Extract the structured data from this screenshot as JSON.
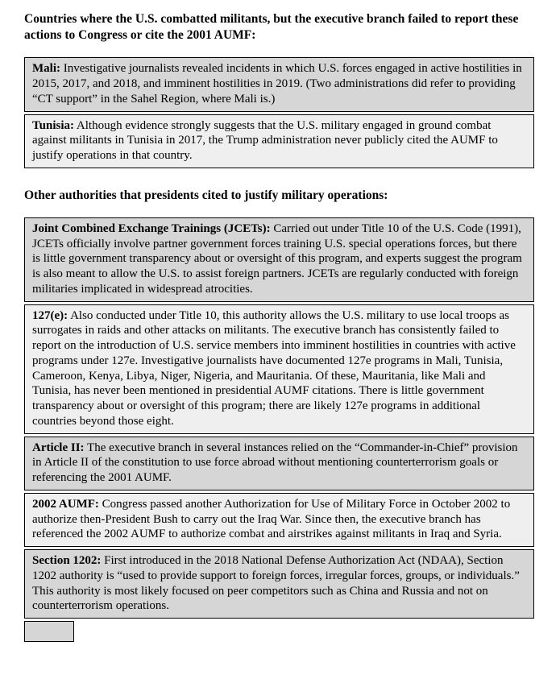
{
  "colors": {
    "row_dark": "#d6d6d6",
    "row_light": "#efefef",
    "border": "#000000"
  },
  "page": {
    "heading1": "Countries where the U.S. combatted militants, but the executive branch failed to report these actions to Congress or cite the 2001 AUMF:",
    "heading2": "Other authorities that presidents cited to justify military operations:"
  },
  "countries_table": {
    "rows": [
      {
        "lead": "Mali:",
        "body": " Investigative journalists revealed incidents in which U.S. forces engaged in active hostilities in 2015, 2017, and 2018, and imminent hostilities in 2019. (Two administrations did refer to providing “CT support” in the Sahel Region, where Mali is.)"
      },
      {
        "lead": "Tunisia:",
        "body": " Although evidence strongly suggests that the U.S. military engaged in ground combat against militants in Tunisia in 2017, the Trump administration never publicly cited the AUMF to justify operations in that country."
      }
    ]
  },
  "authorities_table": {
    "rows": [
      {
        "lead": "Joint Combined Exchange Trainings (JCETs):",
        "body": " Carried out under Title 10 of the U.S. Code (1991), JCETs officially involve partner government forces training U.S. special operations forces, but there is little government transparency about or oversight of this program, and experts suggest the program is also meant to allow the U.S. to assist foreign partners. JCETs are regularly conducted with foreign militaries implicated in widespread atrocities."
      },
      {
        "lead": "127(e):",
        "body": " Also conducted under Title 10, this authority allows the U.S. military to use local troops as surrogates in raids and other attacks on militants. The executive branch has consistently failed to report on the introduction of U.S. service members into imminent hostilities in countries with active programs under 127e. Investigative journalists have documented 127e programs in Mali, Tunisia, Cameroon, Kenya, Libya, Niger, Nigeria, and Mauritania. Of these, Mauritania, like Mali and Tunisia, has never been mentioned in presidential AUMF citations. There is little government transparency about or oversight of this program; there are likely 127e programs in additional countries beyond those eight."
      },
      {
        "lead": "Article II:",
        "body": " The executive branch in several instances relied on the “Commander-in-Chief” provision in Article II of the constitution to use force abroad without mentioning counterterrorism goals or referencing the 2001 AUMF."
      },
      {
        "lead": "2002 AUMF:",
        "body": " Congress passed another Authorization for Use of Military Force in October 2002 to authorize then-President Bush to carry out the Iraq War. Since then, the executive branch has referenced the 2002 AUMF to authorize combat and airstrikes against militants in Iraq and Syria."
      },
      {
        "lead": "Section 1202:",
        "body": " First introduced in the 2018 National Defense Authorization Act (NDAA), Section 1202 authority is “used to provide support to foreign forces, irregular forces, groups, or individuals.” This authority is most likely focused on peer competitors such as China and Russia and not on counterterrorism operations."
      }
    ]
  }
}
